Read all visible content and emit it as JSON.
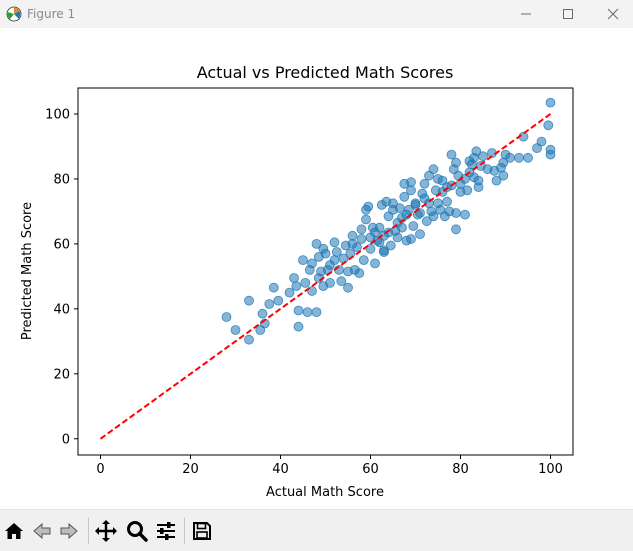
{
  "window": {
    "title": "Figure 1"
  },
  "chart_data": {
    "type": "scatter",
    "title": "Actual vs Predicted Math Scores",
    "xlabel": "Actual Math Score",
    "ylabel": "Predicted Math Score",
    "xlim": [
      -5,
      105
    ],
    "ylim": [
      -5,
      108
    ],
    "xticks": [
      0,
      20,
      40,
      60,
      80,
      100
    ],
    "yticks": [
      0,
      20,
      40,
      60,
      80,
      100
    ],
    "point_color": "#1f77b4",
    "point_alpha": 0.55,
    "reference_line": {
      "x": [
        0,
        100
      ],
      "y": [
        0,
        100
      ],
      "color": "#ff0000",
      "style": "dashed"
    },
    "points": [
      [
        28,
        37.5
      ],
      [
        30,
        33.5
      ],
      [
        33,
        30.5
      ],
      [
        33,
        42.5
      ],
      [
        35.5,
        33.5
      ],
      [
        36,
        38.5
      ],
      [
        36.5,
        35.5
      ],
      [
        37.5,
        41.5
      ],
      [
        38.5,
        46.5
      ],
      [
        39.5,
        42.5
      ],
      [
        42,
        45
      ],
      [
        43,
        49.5
      ],
      [
        43.5,
        47
      ],
      [
        44,
        39.5
      ],
      [
        44,
        34.5
      ],
      [
        45,
        55
      ],
      [
        45.5,
        48
      ],
      [
        46,
        39
      ],
      [
        46.5,
        52
      ],
      [
        47,
        54
      ],
      [
        47,
        45.5
      ],
      [
        48,
        39
      ],
      [
        48,
        60
      ],
      [
        48.5,
        49.5
      ],
      [
        48.5,
        56
      ],
      [
        49,
        51.5
      ],
      [
        49.5,
        58.5
      ],
      [
        49.5,
        47
      ],
      [
        50,
        57
      ],
      [
        50.5,
        52
      ],
      [
        51,
        48
      ],
      [
        51,
        53.5
      ],
      [
        52,
        60.5
      ],
      [
        52,
        55
      ],
      [
        52.5,
        57.5
      ],
      [
        53,
        52
      ],
      [
        53.5,
        48.5
      ],
      [
        54,
        55.5
      ],
      [
        54.5,
        59.5
      ],
      [
        55,
        51.5
      ],
      [
        55,
        46.5
      ],
      [
        55.5,
        57
      ],
      [
        56,
        62.5
      ],
      [
        56,
        60
      ],
      [
        56.5,
        52
      ],
      [
        57,
        59
      ],
      [
        57.5,
        51
      ],
      [
        58,
        61.5
      ],
      [
        58,
        64.5
      ],
      [
        58.5,
        55
      ],
      [
        59,
        70.5
      ],
      [
        59,
        67.5
      ],
      [
        59.5,
        71.5
      ],
      [
        60,
        62
      ],
      [
        60,
        58.5
      ],
      [
        60.5,
        65
      ],
      [
        61,
        63.5
      ],
      [
        61,
        54
      ],
      [
        61.5,
        61
      ],
      [
        62,
        65
      ],
      [
        62,
        60.5
      ],
      [
        62.5,
        72
      ],
      [
        63,
        57.5
      ],
      [
        63,
        62.5
      ],
      [
        63,
        58
      ],
      [
        63.5,
        73
      ],
      [
        64,
        68.5
      ],
      [
        64,
        63.5
      ],
      [
        64.5,
        59.5
      ],
      [
        65,
        70.5
      ],
      [
        65,
        72.5
      ],
      [
        65.5,
        64
      ],
      [
        66,
        66.5
      ],
      [
        66,
        62
      ],
      [
        66.5,
        71
      ],
      [
        67,
        68
      ],
      [
        67,
        65
      ],
      [
        67.5,
        74.5
      ],
      [
        67.5,
        78.5
      ],
      [
        68,
        61
      ],
      [
        68,
        69
      ],
      [
        68.5,
        70.5
      ],
      [
        69,
        76.5
      ],
      [
        69,
        79
      ],
      [
        69,
        61.5
      ],
      [
        69.5,
        65.5
      ],
      [
        70,
        72.5
      ],
      [
        70,
        72
      ],
      [
        70.5,
        69
      ],
      [
        71,
        63
      ],
      [
        71,
        69.5
      ],
      [
        71.5,
        75.5
      ],
      [
        72,
        78.5
      ],
      [
        72,
        74
      ],
      [
        72.5,
        67
      ],
      [
        73,
        81
      ],
      [
        73,
        72.5
      ],
      [
        73.5,
        70
      ],
      [
        74,
        83
      ],
      [
        74,
        68.5
      ],
      [
        74.5,
        76.5
      ],
      [
        75,
        72.5
      ],
      [
        75,
        80
      ],
      [
        75.5,
        70.5
      ],
      [
        76,
        76
      ],
      [
        76,
        79.5
      ],
      [
        76.5,
        68.5
      ],
      [
        77,
        73
      ],
      [
        77,
        77.5
      ],
      [
        77.5,
        70
      ],
      [
        78,
        87.5
      ],
      [
        78,
        78
      ],
      [
        78.5,
        83
      ],
      [
        79,
        64.5
      ],
      [
        79,
        69.5
      ],
      [
        79,
        85
      ],
      [
        79.5,
        81
      ],
      [
        80,
        76
      ],
      [
        80,
        78.5
      ],
      [
        81,
        69
      ],
      [
        81,
        80
      ],
      [
        81.5,
        76.5
      ],
      [
        82,
        85.5
      ],
      [
        82,
        82
      ],
      [
        82.5,
        84.5
      ],
      [
        83,
        86.5
      ],
      [
        83,
        80.5
      ],
      [
        83.5,
        88.5
      ],
      [
        84,
        79.5
      ],
      [
        84,
        77.5
      ],
      [
        84.5,
        84
      ],
      [
        85,
        87
      ],
      [
        86,
        83
      ],
      [
        87,
        88
      ],
      [
        87.5,
        82.5
      ],
      [
        88,
        79.5
      ],
      [
        89,
        83.5
      ],
      [
        89.5,
        85
      ],
      [
        89.5,
        81
      ],
      [
        90,
        87.5
      ],
      [
        91,
        86.5
      ],
      [
        93,
        86.5
      ],
      [
        94,
        93
      ],
      [
        95,
        86.5
      ],
      [
        97,
        89.5
      ],
      [
        98,
        91.5
      ],
      [
        99.5,
        96.5
      ],
      [
        100,
        87.5
      ],
      [
        100,
        103.5
      ],
      [
        100,
        89
      ]
    ]
  }
}
